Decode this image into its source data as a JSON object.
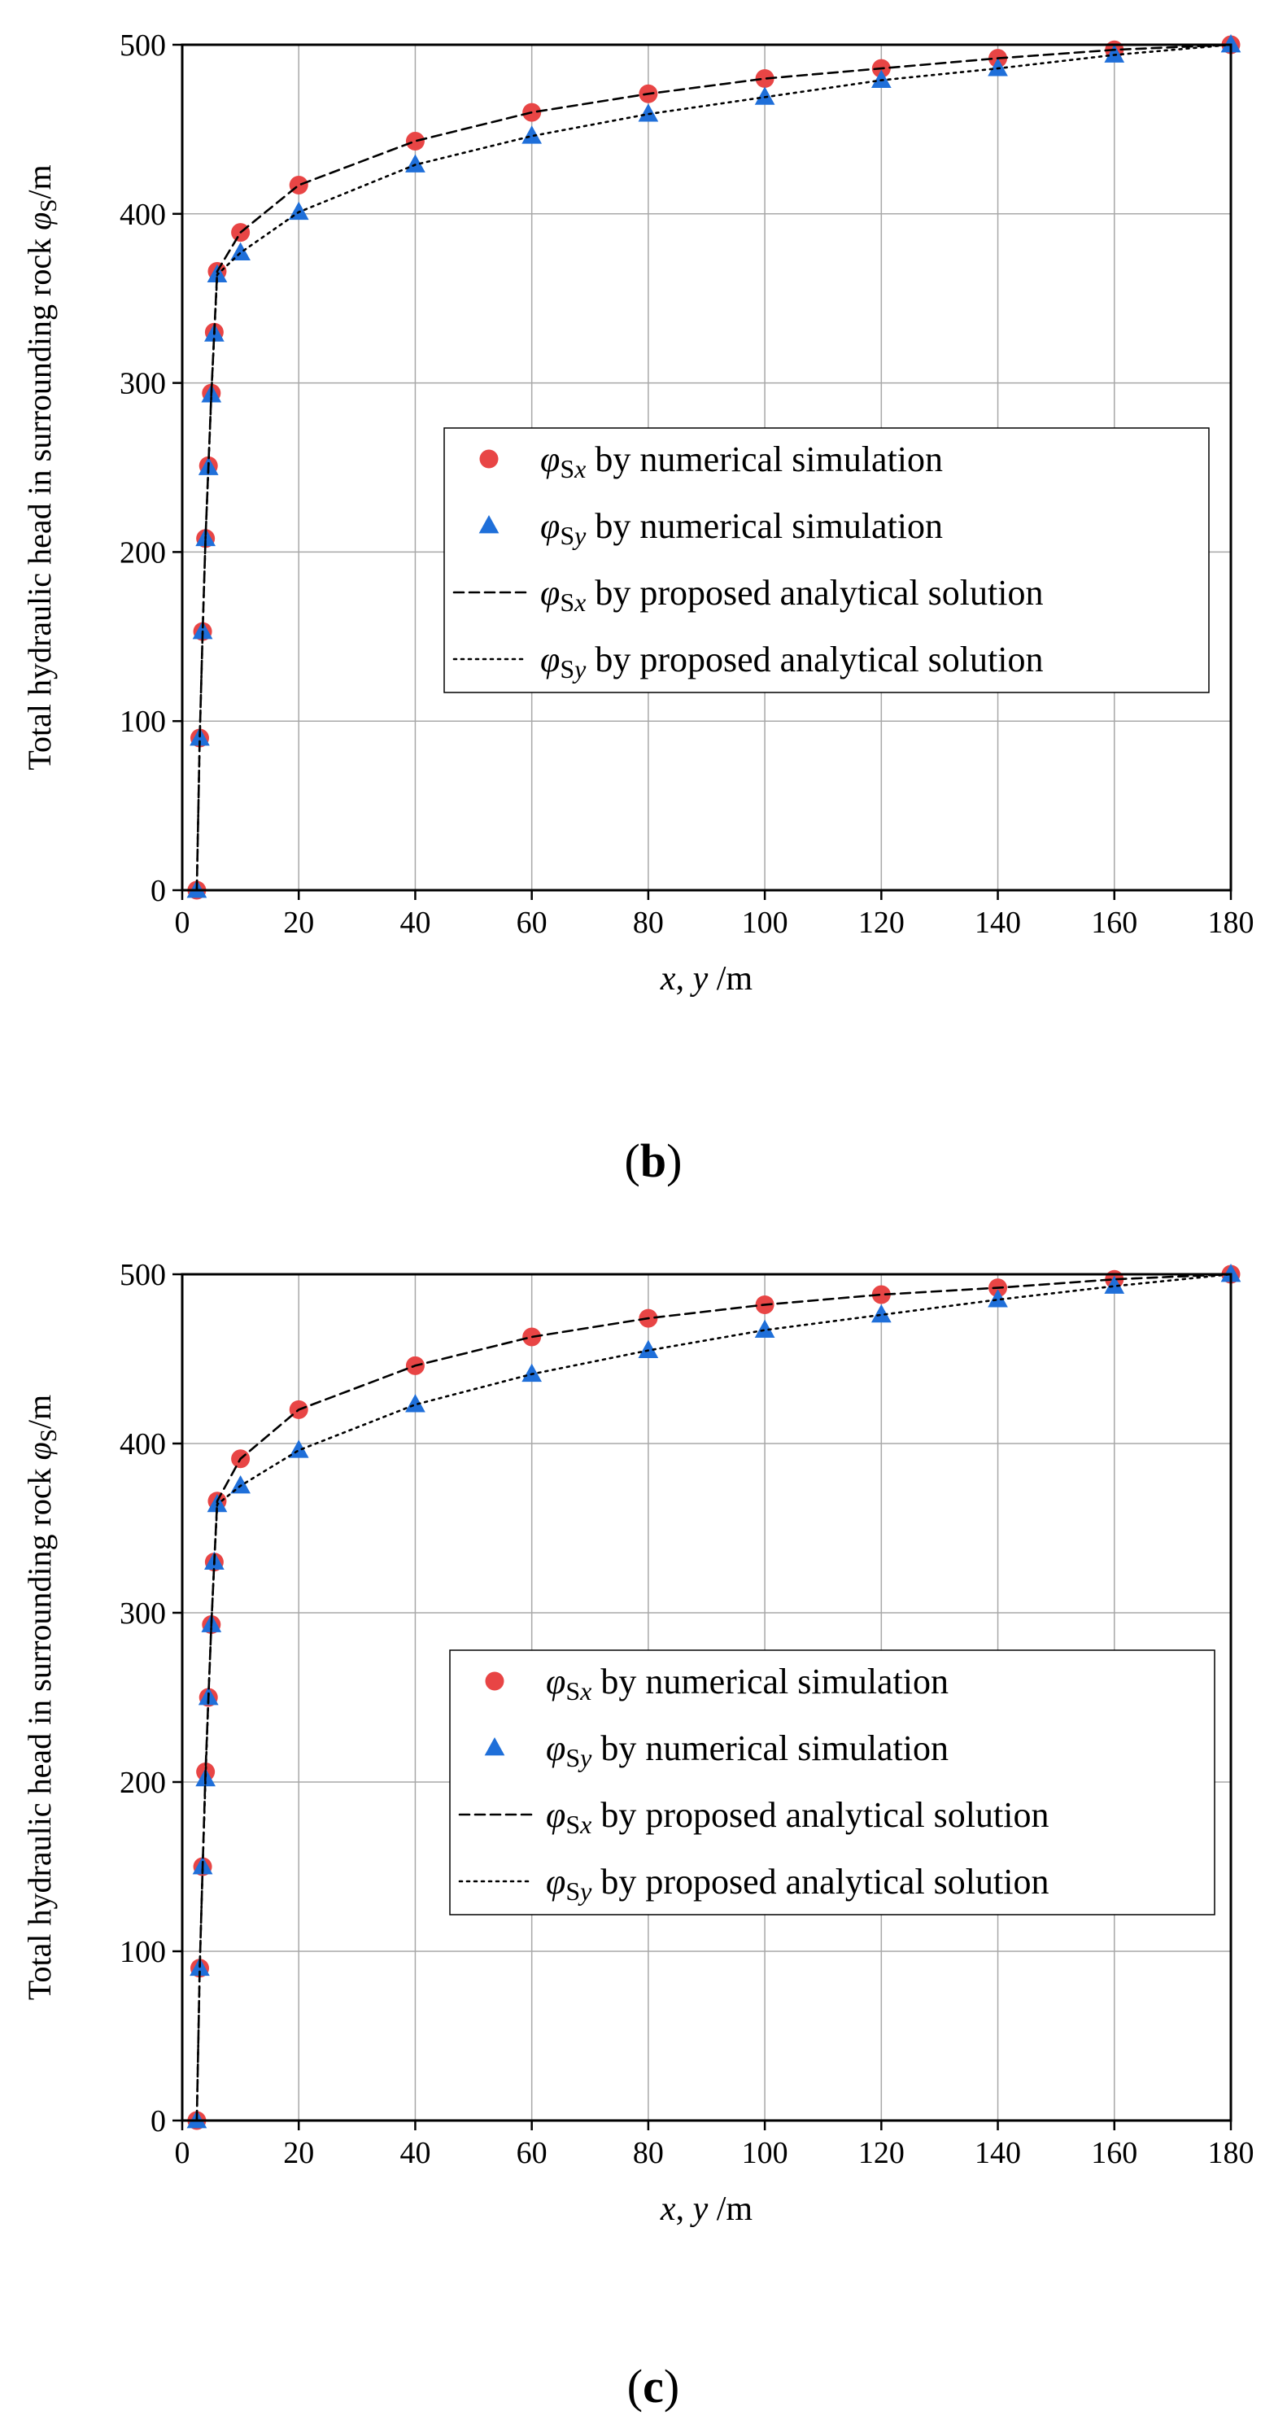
{
  "chart_data": [
    {
      "type": "scatter",
      "panel_label": "(b)",
      "panel_letter": "b",
      "xlabel": "x, y /m",
      "ylabel": "Total hydraulic head in surrounding rock  φS/m",
      "xlim": [
        0,
        180
      ],
      "ylim": [
        0,
        500
      ],
      "xticks": [
        0,
        20,
        40,
        60,
        80,
        100,
        120,
        140,
        160,
        180
      ],
      "yticks": [
        0,
        100,
        200,
        300,
        400,
        500
      ],
      "grid": true,
      "legend_position": "center-right",
      "series": [
        {
          "name": "φSx by numerical simulation",
          "kind": "circle",
          "color": "#e84545",
          "x": [
            2.5,
            3,
            3.5,
            4,
            4.5,
            5,
            5.5,
            6,
            10,
            20,
            40,
            60,
            80,
            100,
            120,
            140,
            160,
            180
          ],
          "y": [
            0,
            90,
            153,
            208,
            251,
            294,
            330,
            366,
            389,
            417,
            443,
            460,
            471,
            480,
            486,
            492,
            497,
            500
          ]
        },
        {
          "name": "φSy by numerical simulation",
          "kind": "triangle",
          "color": "#1f6fd9",
          "x": [
            2.5,
            3,
            3.5,
            4,
            4.5,
            5,
            5.5,
            6,
            10,
            20,
            40,
            60,
            80,
            100,
            120,
            140,
            160,
            180
          ],
          "y": [
            0,
            90,
            153,
            208,
            250,
            293,
            329,
            364,
            377,
            401,
            429,
            446,
            459,
            469,
            479,
            486,
            494,
            500
          ]
        },
        {
          "name": "φSx by proposed analytical solution",
          "kind": "dashed",
          "color": "#000000",
          "x": [
            2.5,
            3,
            3.5,
            4,
            4.5,
            5,
            5.5,
            6,
            10,
            20,
            40,
            60,
            80,
            100,
            120,
            140,
            160,
            180
          ],
          "y": [
            0,
            90,
            153,
            208,
            251,
            294,
            330,
            366,
            389,
            417,
            443,
            460,
            471,
            480,
            486,
            492,
            497,
            500
          ]
        },
        {
          "name": "φSy by proposed analytical solution",
          "kind": "dotted",
          "color": "#000000",
          "x": [
            2.5,
            3,
            3.5,
            4,
            4.5,
            5,
            5.5,
            6,
            10,
            20,
            40,
            60,
            80,
            100,
            120,
            140,
            160,
            180
          ],
          "y": [
            0,
            90,
            153,
            208,
            250,
            293,
            329,
            364,
            377,
            401,
            429,
            446,
            459,
            469,
            479,
            486,
            494,
            500
          ]
        }
      ]
    },
    {
      "type": "scatter",
      "panel_label": "(c)",
      "panel_letter": "c",
      "xlabel": "x, y /m",
      "ylabel": "Total hydraulic head in surrounding rock  φS/m",
      "xlim": [
        0,
        180
      ],
      "ylim": [
        0,
        500
      ],
      "xticks": [
        0,
        20,
        40,
        60,
        80,
        100,
        120,
        140,
        160,
        180
      ],
      "yticks": [
        0,
        100,
        200,
        300,
        400,
        500
      ],
      "grid": true,
      "legend_position": "center-right",
      "series": [
        {
          "name": "φSx by numerical simulation",
          "kind": "circle",
          "color": "#e84545",
          "x": [
            2.5,
            3,
            3.5,
            4,
            4.5,
            5,
            5.5,
            6,
            10,
            20,
            40,
            60,
            80,
            100,
            120,
            140,
            160,
            180
          ],
          "y": [
            0,
            90,
            150,
            206,
            250,
            293,
            330,
            366,
            391,
            420,
            446,
            463,
            474,
            482,
            488,
            492,
            497,
            500
          ]
        },
        {
          "name": "φSy by numerical simulation",
          "kind": "triangle",
          "color": "#1f6fd9",
          "x": [
            2.5,
            3,
            3.5,
            4,
            4.5,
            5,
            5.5,
            6,
            10,
            20,
            40,
            60,
            80,
            100,
            120,
            140,
            160,
            180
          ],
          "y": [
            0,
            90,
            150,
            202,
            250,
            293,
            330,
            364,
            375,
            396,
            423,
            441,
            455,
            467,
            476,
            485,
            493,
            500
          ]
        },
        {
          "name": "φSx by proposed analytical solution",
          "kind": "dashed",
          "color": "#000000",
          "x": [
            2.5,
            3,
            3.5,
            4,
            4.5,
            5,
            5.5,
            6,
            10,
            20,
            40,
            60,
            80,
            100,
            120,
            140,
            160,
            180
          ],
          "y": [
            0,
            90,
            150,
            206,
            250,
            293,
            330,
            366,
            391,
            420,
            446,
            463,
            474,
            482,
            488,
            492,
            497,
            500
          ]
        },
        {
          "name": "φSy by proposed analytical solution",
          "kind": "dotted",
          "color": "#000000",
          "x": [
            2.5,
            3,
            3.5,
            4,
            4.5,
            5,
            5.5,
            6,
            10,
            20,
            40,
            60,
            80,
            100,
            120,
            140,
            160,
            180
          ],
          "y": [
            0,
            90,
            150,
            202,
            250,
            293,
            330,
            364,
            375,
            396,
            423,
            441,
            455,
            467,
            476,
            485,
            493,
            500
          ]
        }
      ]
    }
  ]
}
